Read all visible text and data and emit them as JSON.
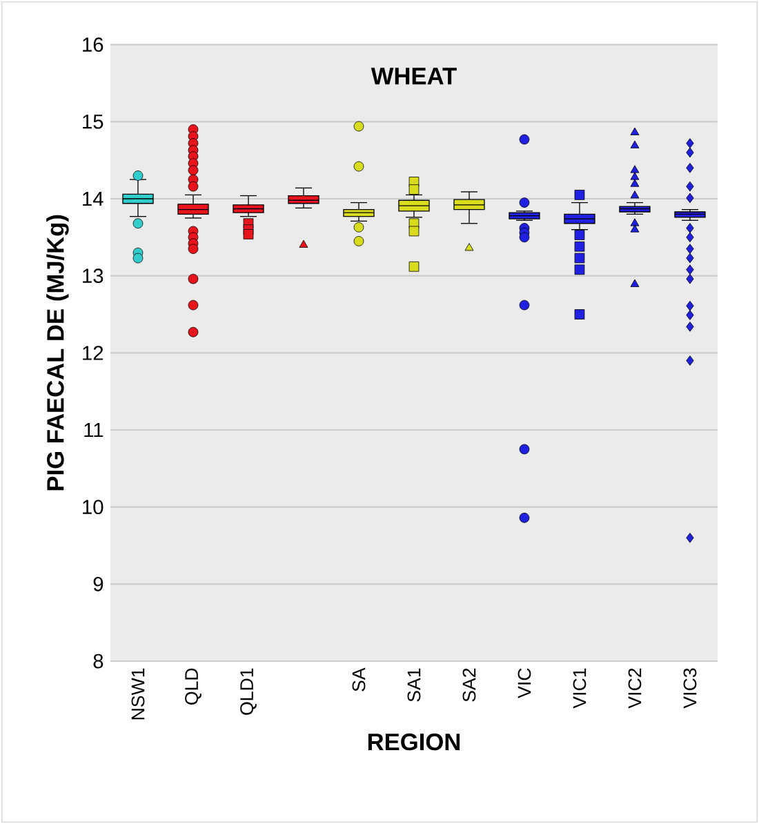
{
  "chart_data": {
    "type": "box",
    "title": "WHEAT",
    "xlabel": "REGION",
    "ylabel": "PIG FAECAL DE (MJ/Kg)",
    "categories": [
      "NSW1",
      "QLD",
      "QLD1",
      null,
      "SA",
      "SA1",
      "SA2",
      "VIC",
      "VIC1",
      "VIC2",
      "VIC3"
    ],
    "ylim": [
      8,
      16
    ],
    "yticks": [
      8,
      9,
      10,
      11,
      12,
      13,
      14,
      15,
      16
    ],
    "grid": "y",
    "series": [
      {
        "marker": "circle",
        "colors": [
          "#33cccc",
          "#e8141c",
          null,
          null,
          "#d8dc1c",
          null,
          null,
          "#2020e0",
          null,
          null,
          null
        ],
        "boxes": [
          {
            "low": 13.77,
            "q1": 13.94,
            "median": 14.0,
            "q3": 14.06,
            "high": 14.25,
            "outliers": [
              14.3,
              13.68,
              13.3,
              13.23
            ]
          },
          {
            "low": 13.75,
            "q1": 13.8,
            "median": 13.86,
            "q3": 13.93,
            "high": 14.05,
            "outliers": [
              14.9,
              14.81,
              14.72,
              14.63,
              14.55,
              14.46,
              14.37,
              14.25,
              14.16,
              13.58,
              13.5,
              13.42,
              13.35,
              12.96,
              12.62,
              12.27
            ]
          },
          null,
          null,
          {
            "low": 13.71,
            "q1": 13.77,
            "median": 13.82,
            "q3": 13.86,
            "high": 13.95,
            "outliers": [
              14.94,
              14.42,
              13.63,
              13.45
            ]
          },
          null,
          null,
          {
            "low": 13.72,
            "q1": 13.74,
            "median": 13.78,
            "q3": 13.82,
            "high": 13.84,
            "outliers": [
              14.77,
              13.95,
              13.62,
              13.56,
              13.5,
              12.62,
              10.75,
              9.86
            ]
          },
          null,
          null,
          null
        ]
      },
      {
        "marker": "square",
        "colors": [
          null,
          null,
          "#e8141c",
          null,
          null,
          "#d8dc1c",
          null,
          null,
          "#2020e0",
          null,
          null
        ],
        "boxes": [
          null,
          null,
          {
            "low": 13.77,
            "q1": 13.82,
            "median": 13.87,
            "q3": 13.92,
            "high": 14.04,
            "outliers": [
              13.68,
              13.6,
              13.54
            ]
          },
          null,
          null,
          {
            "low": 13.76,
            "q1": 13.84,
            "median": 13.91,
            "q3": 13.98,
            "high": 14.05,
            "outliers": [
              14.22,
              14.12,
              13.68,
              13.58,
              13.12
            ]
          },
          null,
          null,
          {
            "low": 13.6,
            "q1": 13.68,
            "median": 13.74,
            "q3": 13.8,
            "high": 13.95,
            "outliers": [
              14.05,
              13.53,
              13.38,
              13.23,
              13.08,
              12.5
            ]
          },
          null,
          null
        ]
      },
      {
        "marker": "triangle",
        "colors": [
          null,
          null,
          null,
          "#e8141c",
          null,
          null,
          "#d8dc1c",
          null,
          null,
          "#2020e0",
          null
        ],
        "boxes": [
          null,
          null,
          null,
          {
            "low": 13.88,
            "q1": 13.94,
            "median": 13.98,
            "q3": 14.04,
            "high": 14.14,
            "outliers": [
              13.4
            ]
          },
          null,
          null,
          {
            "low": 13.68,
            "q1": 13.86,
            "median": 13.92,
            "q3": 13.99,
            "high": 14.09,
            "outliers": [
              13.36
            ]
          },
          null,
          null,
          {
            "low": 13.8,
            "q1": 13.83,
            "median": 13.87,
            "q3": 13.9,
            "high": 13.95,
            "outliers": [
              14.86,
              14.69,
              14.37,
              14.28,
              14.19,
              14.04,
              13.68,
              13.6,
              12.89
            ]
          },
          null
        ]
      },
      {
        "marker": "diamond",
        "colors": [
          null,
          null,
          null,
          null,
          null,
          null,
          null,
          null,
          null,
          null,
          "#2020e0"
        ],
        "boxes": [
          null,
          null,
          null,
          null,
          null,
          null,
          null,
          null,
          null,
          null,
          {
            "low": 13.72,
            "q1": 13.76,
            "median": 13.8,
            "q3": 13.83,
            "high": 13.86,
            "outliers": [
              14.72,
              14.6,
              14.4,
              14.16,
              14.01,
              13.62,
              13.5,
              13.35,
              13.23,
              13.08,
              12.96,
              12.61,
              12.49,
              12.34,
              11.9,
              9.6
            ]
          }
        ]
      }
    ]
  }
}
